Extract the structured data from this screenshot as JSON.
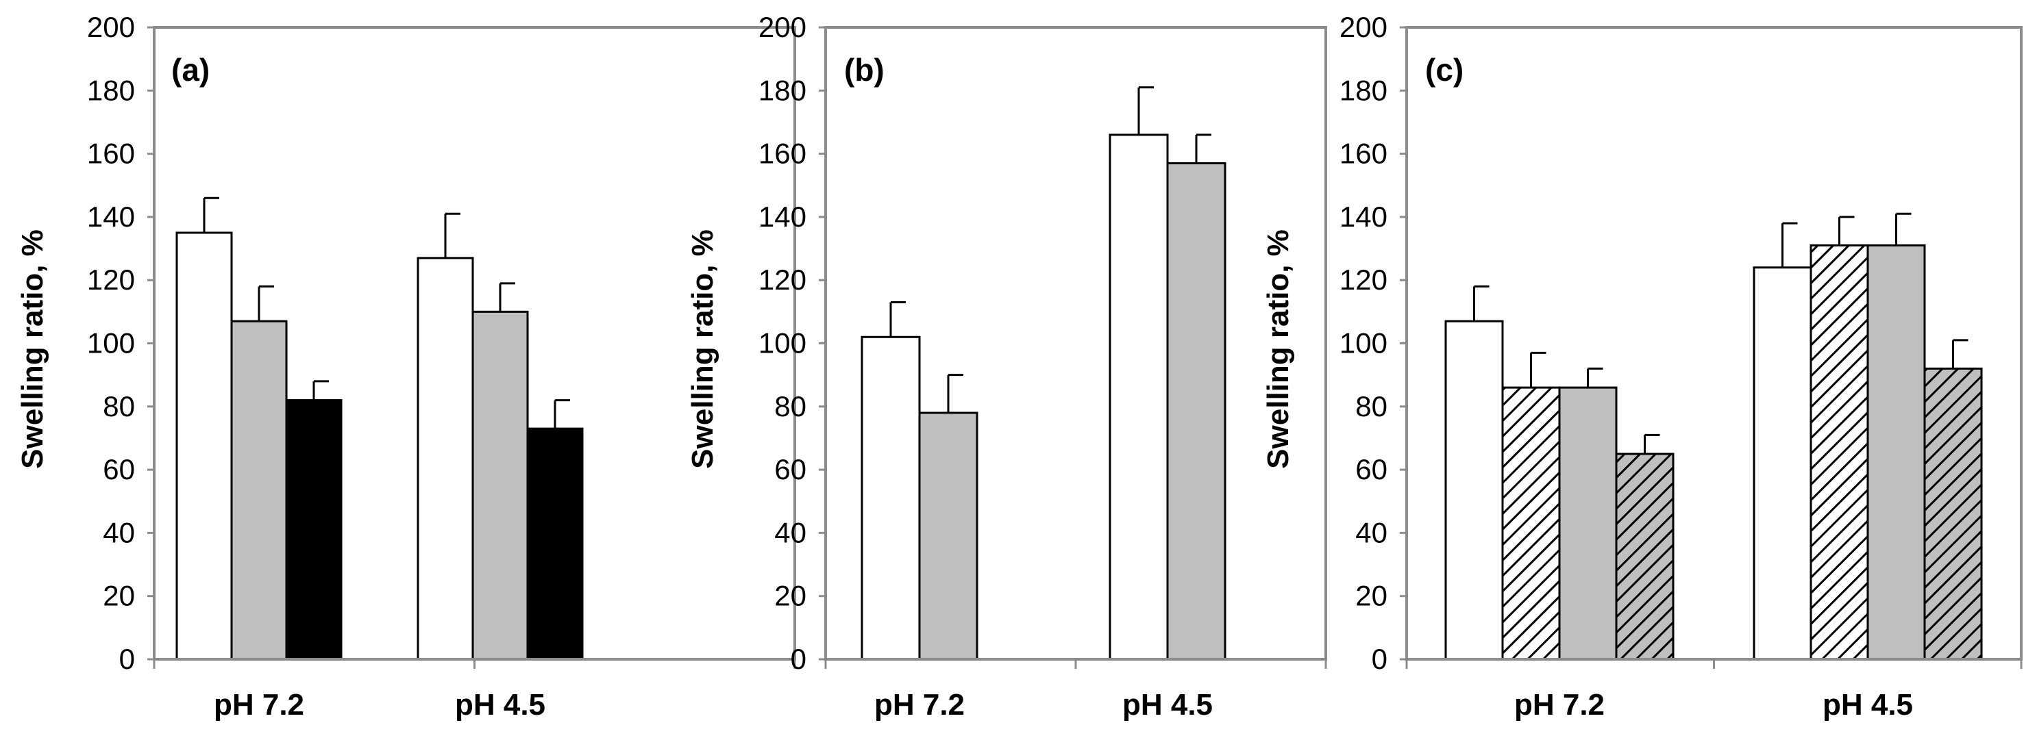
{
  "chart_data": [
    {
      "type": "bar",
      "panel_label": "(a)",
      "ylabel": "Swelling ratio, %",
      "ylim": [
        0,
        200
      ],
      "yticks": [
        "0",
        "20",
        "40",
        "60",
        "80",
        "100",
        "120",
        "140",
        "160",
        "180",
        "200"
      ],
      "categories": [
        "pH 7.2",
        "pH 4.5"
      ],
      "series": [
        {
          "name": "series-1",
          "fill": "white",
          "values": [
            135,
            127
          ],
          "errors": [
            11,
            14
          ]
        },
        {
          "name": "series-2",
          "fill": "gray",
          "values": [
            107,
            110
          ],
          "errors": [
            11,
            9
          ]
        },
        {
          "name": "series-3",
          "fill": "black",
          "values": [
            82,
            73
          ],
          "errors": [
            6,
            9
          ]
        }
      ]
    },
    {
      "type": "bar",
      "panel_label": "(b)",
      "ylabel": "Swelling ratio, %",
      "ylim": [
        0,
        200
      ],
      "yticks": [
        "0",
        "20",
        "40",
        "60",
        "80",
        "100",
        "120",
        "140",
        "160",
        "180",
        "200"
      ],
      "categories": [
        "pH 7.2",
        "pH 4.5"
      ],
      "series": [
        {
          "name": "series-1",
          "fill": "white",
          "values": [
            102,
            166
          ],
          "errors": [
            11,
            15
          ]
        },
        {
          "name": "series-2",
          "fill": "gray",
          "values": [
            78,
            157
          ],
          "errors": [
            12,
            9
          ]
        }
      ]
    },
    {
      "type": "bar",
      "panel_label": "(c)",
      "ylabel": "Swelling ratio, %",
      "ylim": [
        0,
        200
      ],
      "yticks": [
        "0",
        "20",
        "40",
        "60",
        "80",
        "100",
        "120",
        "140",
        "160",
        "180",
        "200"
      ],
      "categories": [
        "pH 7.2",
        "pH 4.5"
      ],
      "series": [
        {
          "name": "series-1",
          "fill": "white",
          "values": [
            107,
            124
          ],
          "errors": [
            11,
            14
          ]
        },
        {
          "name": "series-2",
          "fill": "hatch-white",
          "values": [
            86,
            131
          ],
          "errors": [
            11,
            9
          ]
        },
        {
          "name": "series-3",
          "fill": "gray",
          "values": [
            86,
            131
          ],
          "errors": [
            6,
            10
          ]
        },
        {
          "name": "series-4",
          "fill": "hatch-gray",
          "values": [
            65,
            92
          ],
          "errors": [
            6,
            9
          ]
        }
      ]
    }
  ],
  "colors": {
    "white": "#ffffff",
    "gray": "#bfbfbf",
    "black": "#000000",
    "axis": "#8c8c8c",
    "bar_edge": "#000000"
  }
}
